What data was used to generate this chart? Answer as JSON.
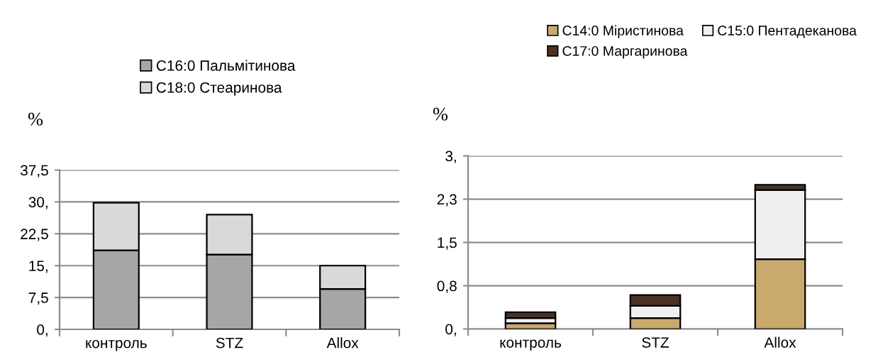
{
  "chart_data": [
    {
      "type": "bar",
      "stacked": true,
      "ylabel": "%",
      "categories": [
        "контроль",
        "STZ",
        "Allox"
      ],
      "series": [
        {
          "name": "C16:0 Пальмітинова",
          "color": "#a6a6a6",
          "values": [
            18.6,
            17.6,
            9.5
          ]
        },
        {
          "name": "C18:0 Стеаринова",
          "color": "#d9d9d9",
          "values": [
            11.2,
            9.4,
            5.5
          ]
        }
      ],
      "ylim": [
        0,
        37.5
      ],
      "yticks": [
        {
          "value": 0,
          "label": "0,"
        },
        {
          "value": 7.5,
          "label": "7,5"
        },
        {
          "value": 15,
          "label": "15,"
        },
        {
          "value": 22.5,
          "label": "22,5"
        },
        {
          "value": 30,
          "label": "30,"
        },
        {
          "value": 37.5,
          "label": "37,5"
        }
      ],
      "grid": "y",
      "legend": "top"
    },
    {
      "type": "bar",
      "stacked": true,
      "ylabel": "%",
      "categories": [
        "контроль",
        "STZ",
        "Allox"
      ],
      "series": [
        {
          "name": "C14:0 Міристинова",
          "color": "#c9a96e",
          "values": [
            0.1,
            0.19,
            1.21
          ]
        },
        {
          "name": "C15:0 Пентадеканова",
          "color": "#efefef",
          "values": [
            0.09,
            0.21,
            1.2
          ]
        },
        {
          "name": "C17:0 Маргаринова",
          "color": "#4a3122",
          "values": [
            0.1,
            0.19,
            0.09
          ]
        }
      ],
      "ylim": [
        0,
        3
      ],
      "yticks": [
        {
          "value": 0,
          "label": "0,"
        },
        {
          "value": 0.75,
          "label": "0,8"
        },
        {
          "value": 1.5,
          "label": "1,5"
        },
        {
          "value": 2.25,
          "label": "2,3"
        },
        {
          "value": 3,
          "label": "3,"
        }
      ],
      "grid": "y",
      "legend": "top"
    }
  ]
}
